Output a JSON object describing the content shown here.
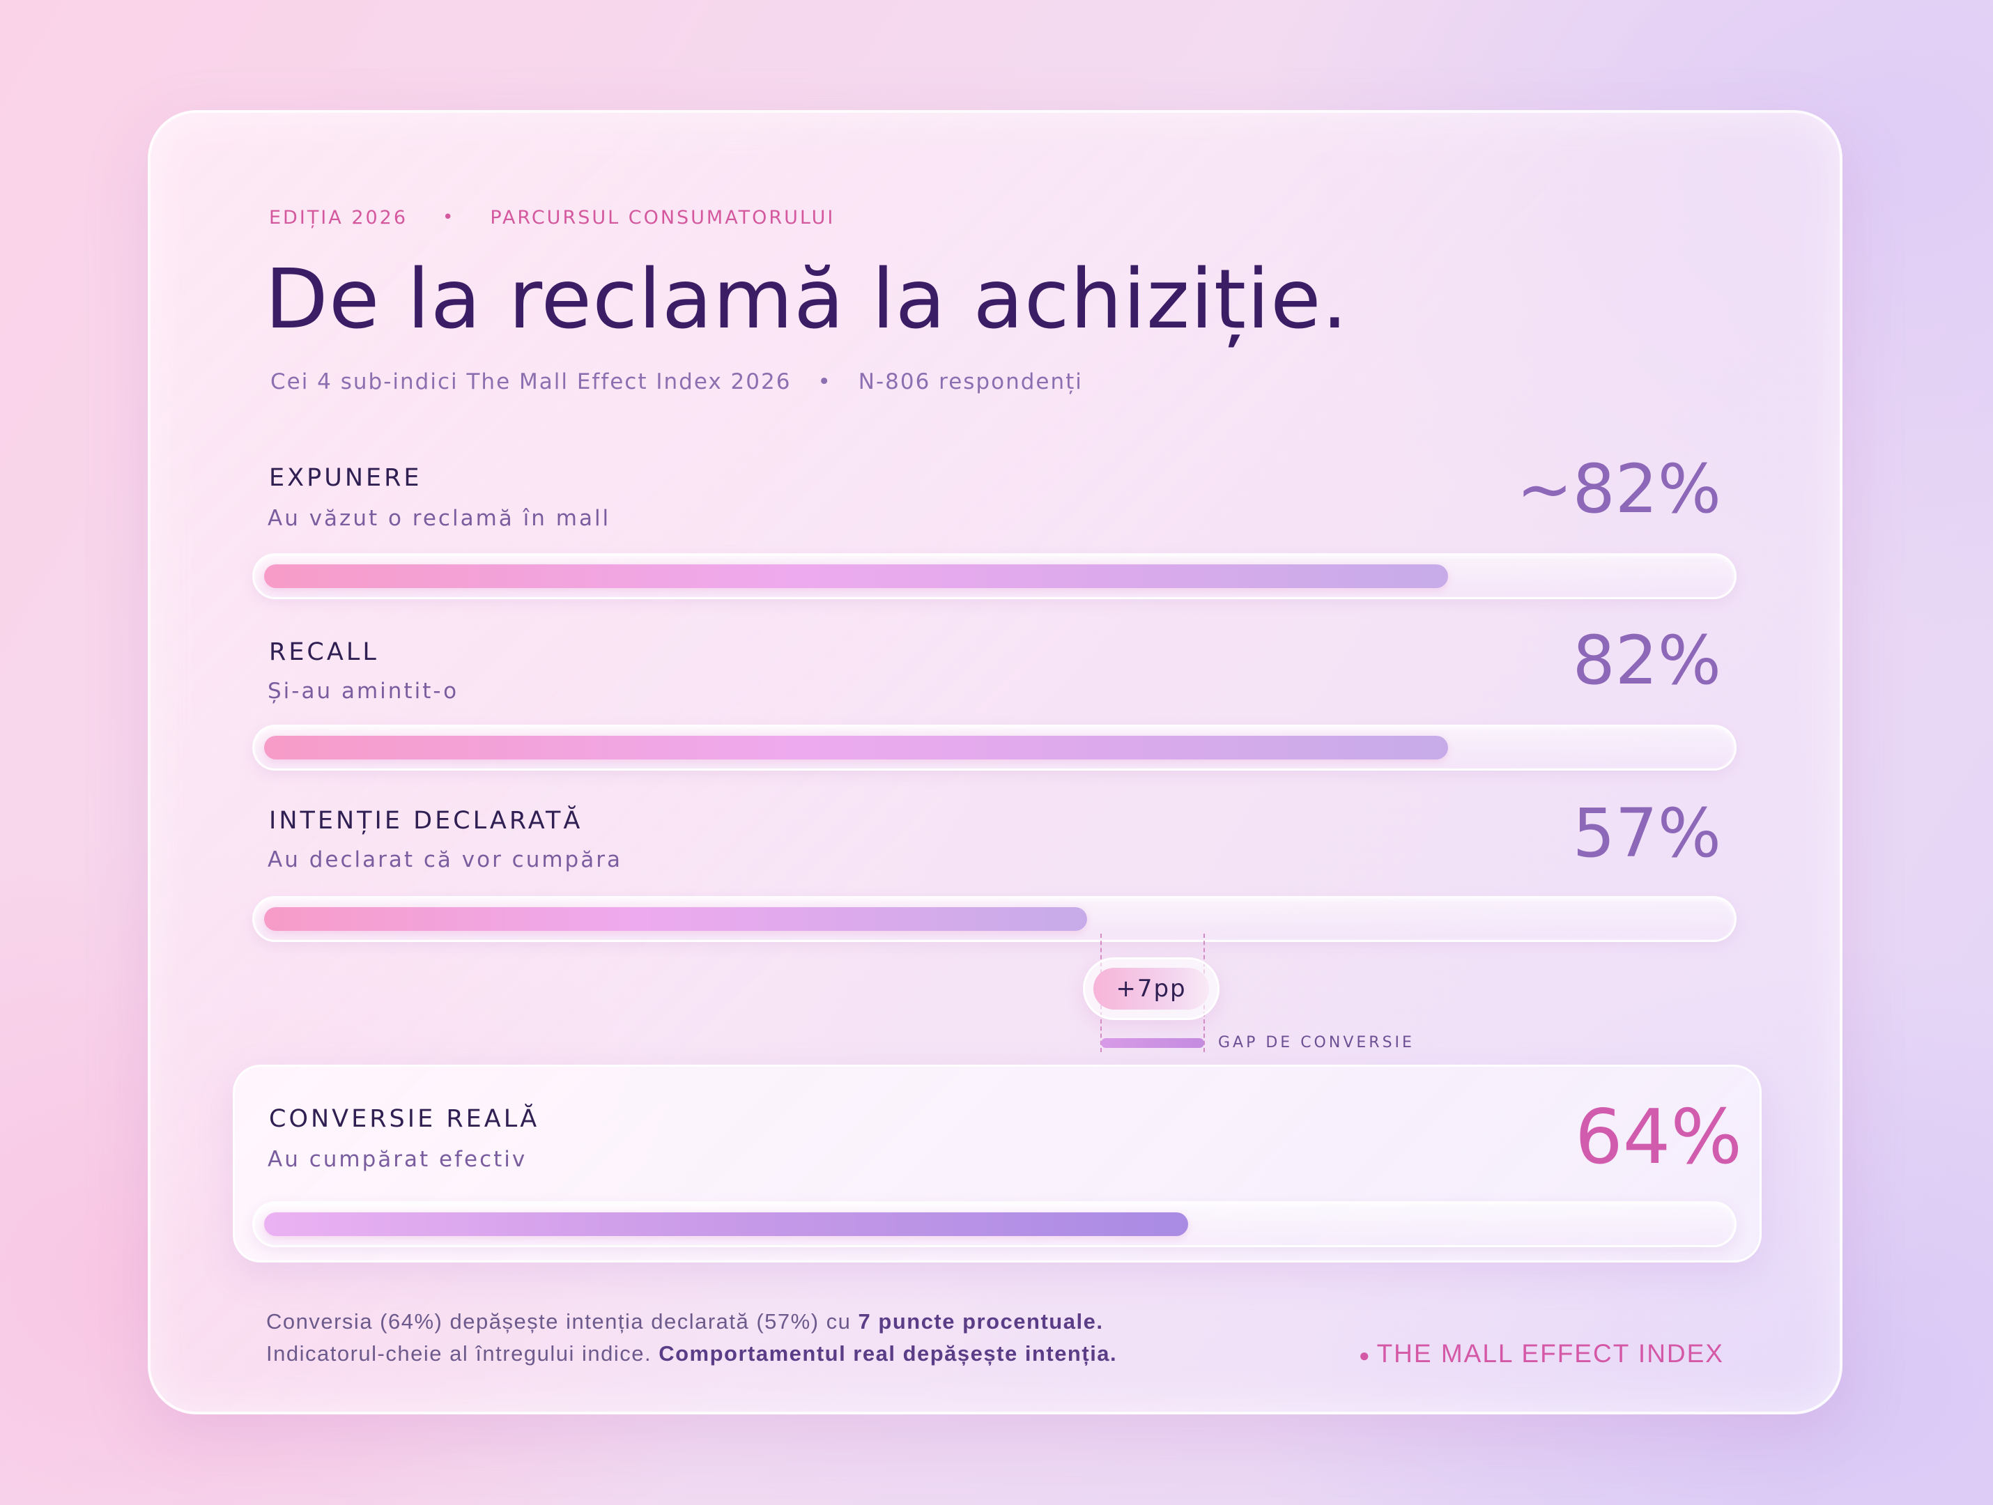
{
  "header": {
    "kicker_edition": "EDIȚIA 2026",
    "kicker_topic": "PARCURSUL CONSUMATORULUI",
    "title": "De la reclamă la achiziție.",
    "subtitle_index": "Cei 4 sub-indici The Mall Effect Index 2026",
    "subtitle_sample": "N-806 respondenți"
  },
  "chart_data": {
    "type": "bar",
    "orientation": "horizontal",
    "categories": [
      "EXPUNERE",
      "RECALL",
      "INTENȚIE DECLARATĂ",
      "CONVERSIE REALĂ"
    ],
    "descriptions": [
      "Au văzut o reclamă în mall",
      "Și-au amintit-o",
      "Au declarat că vor cumpăra",
      "Au cumpărat efectiv"
    ],
    "values": [
      82,
      82,
      57,
      64
    ],
    "value_labels": [
      "~82%",
      "82%",
      "57%",
      "64%"
    ],
    "xlim": [
      0,
      100
    ],
    "annotation": {
      "text": "+7pp",
      "label": "GAP DE CONVERSIE"
    },
    "colors": {
      "bar": "#f79cc8",
      "bar_end": "#c7abe9",
      "conversion_bar": "#a98be4",
      "highlight_value": "#d15cae"
    }
  },
  "footer": {
    "line1_normal": "Conversia (64%) depășește intenția declarată (57%) cu ",
    "line1_bold": "7 puncte procentuale.",
    "line2_normal": "Indicatorul-cheie al întregului indice. ",
    "line2_bold": "Comportamentul real depășește intenția.",
    "brand": "THE MALL EFFECT INDEX"
  }
}
